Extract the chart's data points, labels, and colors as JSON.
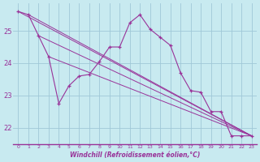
{
  "title": "",
  "xlabel": "Windchill (Refroidissement éolien,°C)",
  "bg_color": "#c8eaf0",
  "grid_color": "#a0c8d8",
  "line_color": "#993399",
  "xlim": [
    -0.5,
    23.5
  ],
  "ylim": [
    21.5,
    25.85
  ],
  "yticks": [
    22,
    23,
    24,
    25
  ],
  "xticks": [
    0,
    1,
    2,
    3,
    4,
    5,
    6,
    7,
    8,
    9,
    10,
    11,
    12,
    13,
    14,
    15,
    16,
    17,
    18,
    19,
    20,
    21,
    22,
    23
  ],
  "main_line": {
    "x": [
      0,
      1,
      2,
      3,
      4,
      5,
      6,
      7,
      8,
      9,
      10,
      11,
      12,
      13,
      14,
      15,
      16,
      17,
      18,
      19,
      20,
      21,
      22,
      23
    ],
    "y": [
      25.6,
      25.5,
      24.85,
      24.2,
      22.75,
      23.3,
      23.6,
      23.65,
      24.05,
      24.5,
      24.5,
      25.25,
      25.5,
      25.05,
      24.8,
      24.55,
      23.7,
      23.15,
      23.1,
      22.5,
      22.5,
      21.75,
      21.75,
      21.75
    ]
  },
  "trend1": {
    "x": [
      0,
      23
    ],
    "y": [
      25.6,
      21.75
    ]
  },
  "trend2": {
    "x": [
      1,
      23
    ],
    "y": [
      25.5,
      21.75
    ]
  },
  "trend3": {
    "x": [
      2,
      23
    ],
    "y": [
      24.85,
      21.75
    ]
  },
  "trend4": {
    "x": [
      3,
      23
    ],
    "y": [
      24.2,
      21.75
    ]
  }
}
